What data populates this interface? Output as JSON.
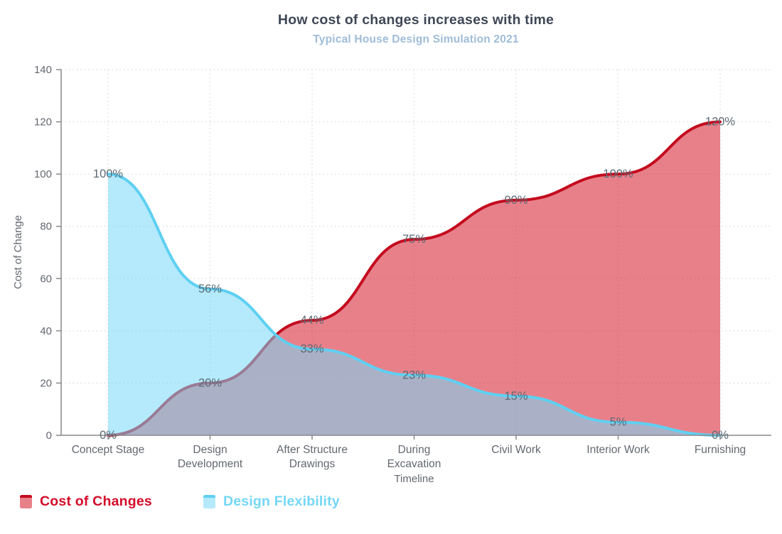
{
  "chart_data": {
    "type": "area",
    "title": "How cost of changes increases with time",
    "subtitle": "Typical House Design Simulation 2021",
    "xlabel": "Timeline",
    "ylabel": "Cost of Change",
    "ylim": [
      0,
      140
    ],
    "ytick_step": 20,
    "grid": true,
    "legend_position": "bottom-left",
    "categories": [
      "Concept Stage",
      "Design Development",
      "After Structure Drawings",
      "During Excavation",
      "Civil Work",
      "Interior Work",
      "Furnishing"
    ],
    "category_lines": [
      [
        "Concept Stage"
      ],
      [
        "Design",
        "Development"
      ],
      [
        "After Structure",
        "Drawings"
      ],
      [
        "During",
        "Excavation"
      ],
      [
        "Civil Work"
      ],
      [
        "Interior Work"
      ],
      [
        "Furnishing"
      ]
    ],
    "series": [
      {
        "name": "Cost of Changes",
        "values": [
          0,
          20,
          44,
          75,
          90,
          100,
          120
        ],
        "point_labels": [
          "0%",
          "20%",
          "44%",
          "75%",
          "90%",
          "100%",
          "120%"
        ],
        "stroke": "#c40b1e",
        "fill": "#d92b3c",
        "fill_opacity": 0.6,
        "legend_fill": "#e8808a",
        "legend_text_color": "#d30d2a"
      },
      {
        "name": "Design Flexibility",
        "values": [
          100,
          56,
          33,
          23,
          15,
          5,
          0
        ],
        "point_labels": [
          "100%",
          "56%",
          "33%",
          "23%",
          "15%",
          "5%",
          "0%"
        ],
        "stroke": "#5fd0f2",
        "fill": "#77d9f8",
        "fill_opacity": 0.55,
        "legend_fill": "#b4eafb",
        "legend_text_color": "#74d7f7"
      }
    ],
    "colors": {
      "title": "#3f4756",
      "subtitle": "#9fbcda",
      "tick_text": "#63686f",
      "data_label": "#5d6a75",
      "grid": "#d8d9de",
      "axis": "#87898c"
    }
  }
}
